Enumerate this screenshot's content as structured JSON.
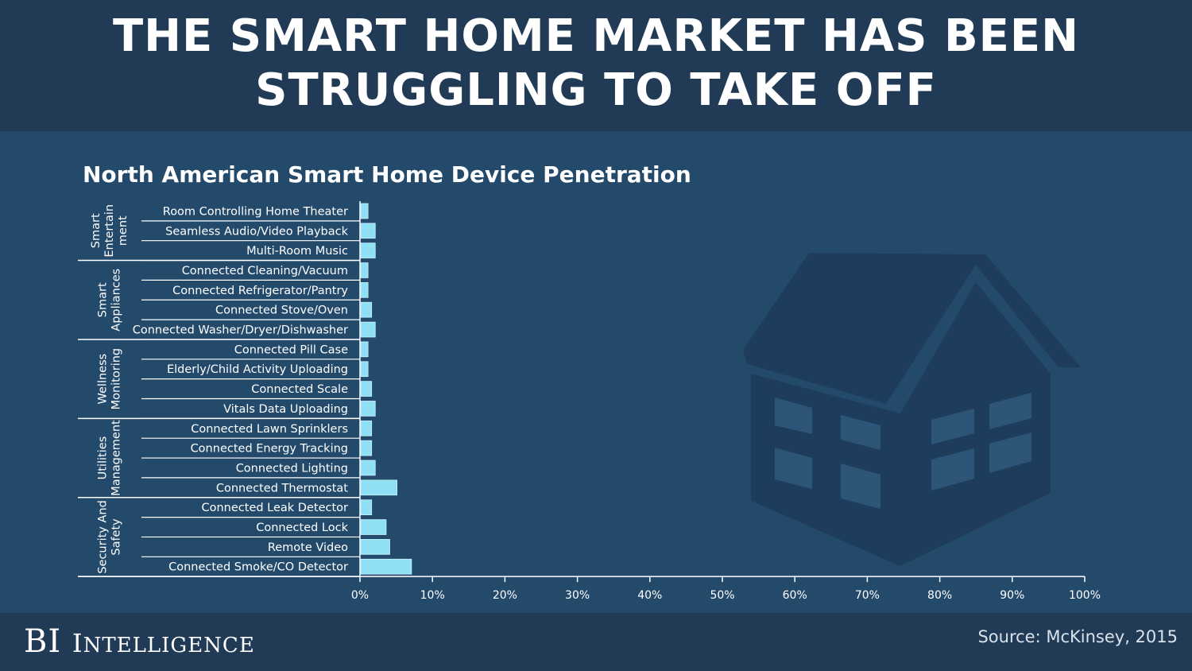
{
  "header": {
    "title_line1": "THE SMART HOME MARKET HAS BEEN",
    "title_line2": "STRUGGLING TO TAKE OFF"
  },
  "footer": {
    "brand_bi": "BI",
    "brand_intelligence": "Intelligence",
    "source": "Source: McKinsey, 2015"
  },
  "colors": {
    "background": "#244a6b",
    "header_band": "#213b56",
    "bar_fill": "#8fe0f5",
    "house": "#1e3d5c"
  },
  "decoration": {
    "icon": "house-icon"
  },
  "chart_data": {
    "type": "bar",
    "orientation": "horizontal",
    "title": "North American Smart Home Device Penetration",
    "xlim": [
      0,
      100
    ],
    "x_ticks": [
      "0%",
      "10%",
      "20%",
      "30%",
      "40%",
      "50%",
      "60%",
      "70%",
      "80%",
      "90%",
      "100%"
    ],
    "grid": false,
    "groups": [
      {
        "name": "Smart Entertainment",
        "label_lines": [
          "Smart",
          "Entertain",
          "ment"
        ],
        "categories": [
          {
            "label": "Room Controlling Home Theater",
            "value": 1
          },
          {
            "label": "Seamless Audio/Video Playback",
            "value": 2
          },
          {
            "label": "Multi-Room Music",
            "value": 2
          }
        ]
      },
      {
        "name": "Smart Appliances",
        "label_lines": [
          "Smart",
          "Appliances"
        ],
        "categories": [
          {
            "label": "Connected Cleaning/Vacuum",
            "value": 1
          },
          {
            "label": "Connected Refrigerator/Pantry",
            "value": 1
          },
          {
            "label": "Connected Stove/Oven",
            "value": 1.5
          },
          {
            "label": "Connected Washer/Dryer/Dishwasher",
            "value": 2
          }
        ]
      },
      {
        "name": "Wellness Monitoring",
        "label_lines": [
          "Wellness",
          "Monitoring"
        ],
        "categories": [
          {
            "label": "Connected Pill Case",
            "value": 1
          },
          {
            "label": "Elderly/Child Activity Uploading",
            "value": 1
          },
          {
            "label": "Connected Scale",
            "value": 1.5
          },
          {
            "label": "Vitals Data Uploading",
            "value": 2
          }
        ]
      },
      {
        "name": "Utilities Management",
        "label_lines": [
          "Utilities",
          "Management"
        ],
        "categories": [
          {
            "label": "Connected Lawn Sprinklers",
            "value": 1.5
          },
          {
            "label": "Connected Energy Tracking",
            "value": 1.5
          },
          {
            "label": "Connected Lighting",
            "value": 2
          },
          {
            "label": "Connected Thermostat",
            "value": 5
          }
        ]
      },
      {
        "name": "Security And Safety",
        "label_lines": [
          "Security And",
          "Safety"
        ],
        "categories": [
          {
            "label": "Connected Leak Detector",
            "value": 1.5
          },
          {
            "label": "Connected Lock",
            "value": 3.5
          },
          {
            "label": "Remote Video",
            "value": 4
          },
          {
            "label": "Connected Smoke/CO Detector",
            "value": 7
          }
        ]
      }
    ]
  }
}
